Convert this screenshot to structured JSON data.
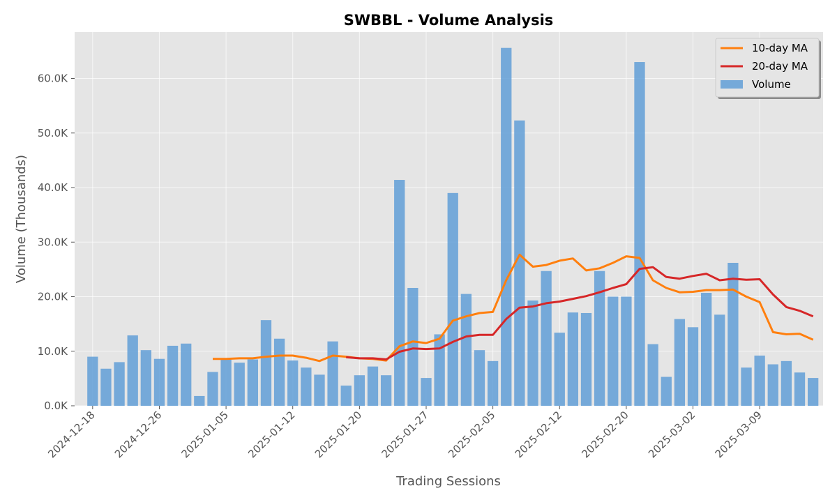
{
  "chart_data": {
    "type": "bar",
    "title": "SWBBL - Volume Analysis",
    "xlabel": "Trading Sessions",
    "ylabel": "Volume (Thousands)",
    "ylim": [
      0,
      68.5
    ],
    "y_ticks": [
      "0.0K",
      "10.0K",
      "20.0K",
      "30.0K",
      "40.0K",
      "50.0K",
      "60.0K"
    ],
    "y_tick_values": [
      0,
      10,
      20,
      30,
      40,
      50,
      60
    ],
    "x_ticks": [
      {
        "index": 0,
        "label": "2024-12-18"
      },
      {
        "index": 5,
        "label": "2024-12-26"
      },
      {
        "index": 10,
        "label": "2025-01-05"
      },
      {
        "index": 15,
        "label": "2025-01-12"
      },
      {
        "index": 20,
        "label": "2025-01-20"
      },
      {
        "index": 25,
        "label": "2025-01-27"
      },
      {
        "index": 30,
        "label": "2025-02-05"
      },
      {
        "index": 35,
        "label": "2025-02-12"
      },
      {
        "index": 40,
        "label": "2025-02-20"
      },
      {
        "index": 45,
        "label": "2025-03-02"
      },
      {
        "index": 50,
        "label": "2025-03-09"
      }
    ],
    "grid": true,
    "legend_position": "top-right",
    "series": [
      {
        "name": "Volume",
        "type": "bar",
        "color": "#5b9bd5",
        "values": [
          9.0,
          6.8,
          8.0,
          12.9,
          10.2,
          8.6,
          11.0,
          11.4,
          1.8,
          6.2,
          8.6,
          7.9,
          8.5,
          15.7,
          12.3,
          8.3,
          7.0,
          5.7,
          11.8,
          3.7,
          5.6,
          7.2,
          5.6,
          41.4,
          21.6,
          5.1,
          13.1,
          39.0,
          20.5,
          10.2,
          8.2,
          65.6,
          52.3,
          19.3,
          24.7,
          13.4,
          17.1,
          17.0,
          24.7,
          20.0,
          20.0,
          63.0,
          11.3,
          5.3,
          15.9,
          14.4,
          20.7,
          16.7,
          26.2,
          7.0,
          9.2,
          7.6,
          8.2,
          6.1,
          5.1
        ]
      },
      {
        "name": "10-day MA",
        "type": "line",
        "color": "#ff7f0e",
        "values": [
          null,
          null,
          null,
          null,
          null,
          null,
          null,
          null,
          null,
          8.6,
          8.6,
          8.7,
          8.7,
          9.0,
          9.2,
          9.2,
          8.8,
          8.2,
          9.2,
          9.0,
          8.7,
          8.6,
          8.3,
          10.9,
          11.8,
          11.5,
          12.3,
          15.6,
          16.4,
          17.0,
          17.2,
          23.0,
          27.7,
          25.5,
          25.8,
          26.6,
          27.0,
          24.8,
          25.2,
          26.2,
          27.4,
          27.1,
          23.0,
          21.6,
          20.8,
          20.9,
          21.2,
          21.2,
          21.3,
          20.0,
          19.0,
          13.5,
          13.1,
          13.2,
          12.1
        ]
      },
      {
        "name": "20-day MA",
        "type": "line",
        "color": "#d62728",
        "values": [
          null,
          null,
          null,
          null,
          null,
          null,
          null,
          null,
          null,
          null,
          null,
          null,
          null,
          null,
          null,
          null,
          null,
          null,
          null,
          8.9,
          8.7,
          8.7,
          8.5,
          9.9,
          10.5,
          10.4,
          10.5,
          11.7,
          12.7,
          13.0,
          13.0,
          15.9,
          18.0,
          18.2,
          18.8,
          19.1,
          19.6,
          20.1,
          20.8,
          21.6,
          22.3,
          25.1,
          25.4,
          23.6,
          23.3,
          23.8,
          24.2,
          23.0,
          23.3,
          23.1,
          23.2,
          20.4,
          18.1,
          17.4,
          16.4
        ]
      }
    ]
  }
}
